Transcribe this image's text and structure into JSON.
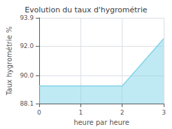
{
  "chart_data": {
    "type": "area",
    "title": "Evolution du taux d'hygrométrie",
    "xlabel": "heure par heure",
    "ylabel": "Taux hygrométrie %",
    "x": [
      0,
      2,
      3
    ],
    "values": [
      89.3,
      89.3,
      92.5
    ],
    "color": "#80d4e8",
    "xlim": [
      0,
      3
    ],
    "xticks": [
      0,
      1,
      2,
      3
    ],
    "ylim": [
      88.1,
      93.9
    ],
    "yticks": [
      88.1,
      {
        "value": 90.0,
        "label": "90.0"
      },
      {
        "value": 92.0,
        "label": "92.0"
      },
      93.9
    ],
    "grid": true
  }
}
